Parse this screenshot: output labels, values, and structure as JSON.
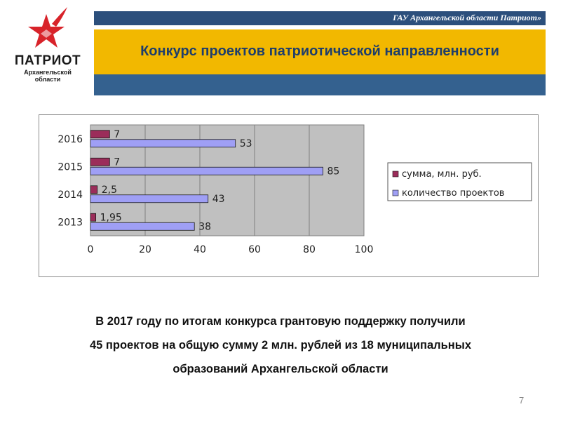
{
  "header": {
    "org_name": "ГАУ Архангельской области Патриот»",
    "title": "Конкурс проектов патриотической направленности"
  },
  "logo": {
    "name": "ПАТРИОТ",
    "subtitle_line1": "Архангельской",
    "subtitle_line2": "области",
    "icon": "red-star-icon"
  },
  "chart_data": {
    "type": "bar",
    "orientation": "horizontal",
    "categories": [
      "2016",
      "2015",
      "2014",
      "2013"
    ],
    "series": [
      {
        "name": "сумма, млн. руб.",
        "values": [
          7,
          7,
          2.5,
          1.95
        ],
        "labels": [
          "7",
          "7",
          "2,5",
          "1,95"
        ],
        "color": "#9b2d5a"
      },
      {
        "name": "количество проектов",
        "values": [
          53,
          85,
          43,
          38
        ],
        "labels": [
          "53",
          "85",
          "43",
          "38"
        ],
        "color": "#9f9ff5"
      }
    ],
    "xlim": [
      0,
      100
    ],
    "xticks": [
      "0",
      "20",
      "40",
      "60",
      "80",
      "100"
    ],
    "grid": true,
    "plot_background": "#c0c0c0",
    "legend_position": "right"
  },
  "summary": {
    "line1": "В 2017 году по итогам конкурса грантовую поддержку получили",
    "line2": "45 проектов на общую сумму 2 млн. рублей из 18 муниципальных",
    "line3": "образований Архангельской области"
  },
  "page_number": "7",
  "colors": {
    "header_blue": "#2c4f7c",
    "title_yellow": "#f2b800",
    "band_blue": "#34618f",
    "title_text": "#1f3e6b"
  }
}
